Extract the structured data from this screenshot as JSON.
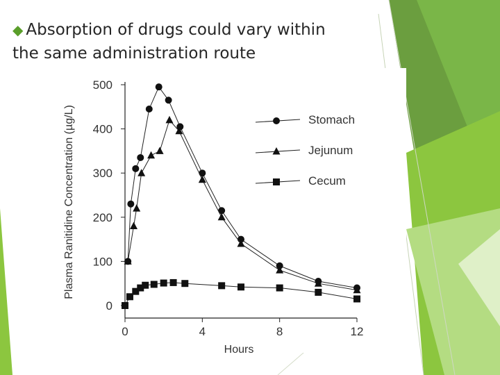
{
  "slide": {
    "bullet_text_line1": "Absorption of drugs could vary within",
    "bullet_text_line2": "the same administration route",
    "bullet_icon": "diamond-bullet-icon",
    "accent_colors": [
      "#5a9e2a",
      "#8cc63f",
      "#a9d66f",
      "#6b9e3f"
    ]
  },
  "chart_data": {
    "type": "line",
    "title": "",
    "xlabel": "Hours",
    "ylabel": "Plasma Ranitidine Concentration (µg/L)",
    "xlim": [
      0,
      12
    ],
    "ylim": [
      0,
      500
    ],
    "x_ticks": [
      "0",
      "4",
      "8",
      "12"
    ],
    "y_ticks": [
      "0",
      "100",
      "200",
      "300",
      "400",
      "500"
    ],
    "legend_position": "right",
    "grid": false,
    "series": [
      {
        "name": "Stomach",
        "marker": "circle",
        "x": [
          0.15,
          0.3,
          0.55,
          0.8,
          1.25,
          1.75,
          2.25,
          2.85,
          4.0,
          5.0,
          6.0,
          8.0,
          10.0,
          12.0
        ],
        "y": [
          100,
          230,
          310,
          335,
          445,
          495,
          465,
          405,
          300,
          215,
          150,
          90,
          55,
          40
        ]
      },
      {
        "name": "Jejunum",
        "marker": "triangle",
        "x": [
          0.15,
          0.45,
          0.6,
          0.85,
          1.35,
          1.8,
          2.3,
          2.8,
          4.0,
          5.0,
          6.0,
          8.0,
          10.0,
          12.0
        ],
        "y": [
          100,
          180,
          220,
          300,
          340,
          350,
          420,
          395,
          285,
          200,
          140,
          80,
          50,
          35
        ]
      },
      {
        "name": "Cecum",
        "marker": "square",
        "x": [
          0.0,
          0.25,
          0.55,
          0.8,
          1.05,
          1.5,
          2.0,
          2.5,
          3.1,
          5.0,
          6.0,
          8.0,
          10.0,
          12.0
        ],
        "y": [
          0,
          20,
          32,
          40,
          46,
          48,
          51,
          52,
          50,
          45,
          42,
          40,
          30,
          15
        ]
      }
    ]
  }
}
